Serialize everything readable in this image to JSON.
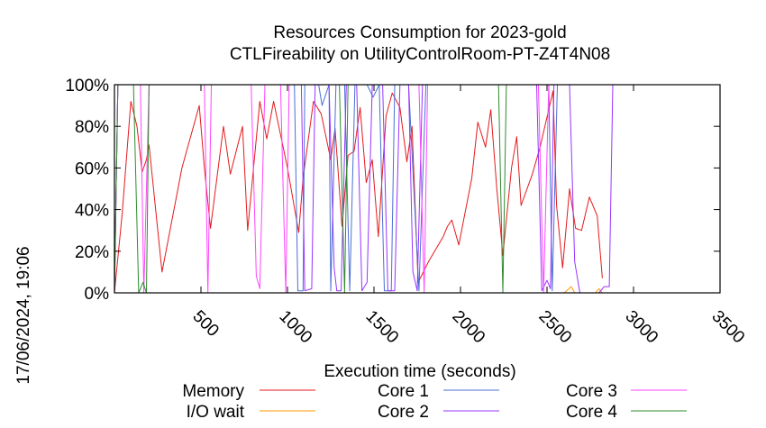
{
  "chart_data": {
    "type": "line",
    "title": "Resources Consumption for 2023-gold",
    "subtitle": "CTLFireability on UtilityControlRoom-PT-Z4T4N08",
    "xlabel": "Execution time (seconds)",
    "ylabel": "",
    "timestamp": "17/06/2024, 19:06",
    "xlim": [
      0,
      3500
    ],
    "ylim": [
      0,
      100
    ],
    "x_ticks": [
      500,
      1000,
      1500,
      2000,
      2500,
      3000,
      3500
    ],
    "y_ticks": [
      0,
      20,
      40,
      60,
      80,
      100
    ],
    "y_tick_suffix": "%",
    "grid": false,
    "legend_position": "bottom",
    "series": [
      {
        "name": "Memory",
        "color": "#e41a1c",
        "points": [
          [
            0,
            0
          ],
          [
            45,
            38
          ],
          [
            95,
            92
          ],
          [
            130,
            80
          ],
          [
            160,
            58
          ],
          [
            185,
            64
          ],
          [
            200,
            71
          ],
          [
            275,
            10
          ],
          [
            390,
            60
          ],
          [
            490,
            90
          ],
          [
            520,
            60
          ],
          [
            555,
            31
          ],
          [
            630,
            80
          ],
          [
            670,
            57
          ],
          [
            740,
            80
          ],
          [
            770,
            30
          ],
          [
            840,
            92
          ],
          [
            880,
            74
          ],
          [
            920,
            92
          ],
          [
            1000,
            60
          ],
          [
            1065,
            29
          ],
          [
            1090,
            55
          ],
          [
            1150,
            92
          ],
          [
            1195,
            86
          ],
          [
            1250,
            64
          ],
          [
            1275,
            79
          ],
          [
            1315,
            32
          ],
          [
            1350,
            66
          ],
          [
            1385,
            68
          ],
          [
            1420,
            89
          ],
          [
            1455,
            53
          ],
          [
            1490,
            64
          ],
          [
            1525,
            27
          ],
          [
            1570,
            85
          ],
          [
            1605,
            96
          ],
          [
            1650,
            89
          ],
          [
            1690,
            63
          ],
          [
            1720,
            80
          ],
          [
            1755,
            5
          ],
          [
            1815,
            15
          ],
          [
            1900,
            27
          ],
          [
            1925,
            32
          ],
          [
            1950,
            35
          ],
          [
            1990,
            23
          ],
          [
            2065,
            55
          ],
          [
            2100,
            82
          ],
          [
            2145,
            70
          ],
          [
            2175,
            88
          ],
          [
            2210,
            50
          ],
          [
            2245,
            18
          ],
          [
            2295,
            60
          ],
          [
            2325,
            75
          ],
          [
            2350,
            42
          ],
          [
            2415,
            57
          ],
          [
            2460,
            70
          ],
          [
            2535,
            97
          ],
          [
            2555,
            42
          ],
          [
            2590,
            12
          ],
          [
            2630,
            50
          ],
          [
            2665,
            31
          ],
          [
            2700,
            30
          ],
          [
            2745,
            46
          ],
          [
            2790,
            37
          ],
          [
            2820,
            7
          ]
        ]
      },
      {
        "name": "I/O wait",
        "color": "#ff9900",
        "points": [
          [
            0,
            0
          ],
          [
            2600,
            0
          ],
          [
            2640,
            3
          ],
          [
            2660,
            0
          ],
          [
            2780,
            0
          ],
          [
            2800,
            2
          ],
          [
            2820,
            0
          ],
          [
            3500,
            0
          ]
        ]
      },
      {
        "name": "Core 1",
        "color": "#4a6fd4",
        "points": [
          [
            0,
            0
          ],
          [
            20,
            100
          ],
          [
            1040,
            100
          ],
          [
            1060,
            1
          ],
          [
            1090,
            1
          ],
          [
            1100,
            100
          ],
          [
            1140,
            100
          ],
          [
            1180,
            100
          ],
          [
            1200,
            90
          ],
          [
            1240,
            100
          ],
          [
            1250,
            1
          ],
          [
            1280,
            100
          ],
          [
            1330,
            100
          ],
          [
            1360,
            1
          ],
          [
            1390,
            100
          ],
          [
            1460,
            100
          ],
          [
            1495,
            94
          ],
          [
            1530,
            100
          ],
          [
            1560,
            1
          ],
          [
            1600,
            1
          ],
          [
            1620,
            100
          ],
          [
            1700,
            100
          ],
          [
            1760,
            1
          ],
          [
            1800,
            100
          ],
          [
            2510,
            100
          ],
          [
            2530,
            1
          ],
          [
            2560,
            100
          ],
          [
            3500,
            100
          ]
        ]
      },
      {
        "name": "Core 2",
        "color": "#9933ff",
        "points": [
          [
            0,
            0
          ],
          [
            20,
            100
          ],
          [
            1080,
            100
          ],
          [
            1100,
            1
          ],
          [
            1140,
            2
          ],
          [
            1160,
            100
          ],
          [
            1240,
            100
          ],
          [
            1270,
            12
          ],
          [
            1285,
            1
          ],
          [
            1310,
            1
          ],
          [
            1340,
            100
          ],
          [
            1400,
            100
          ],
          [
            1430,
            1
          ],
          [
            1460,
            5
          ],
          [
            1490,
            100
          ],
          [
            1550,
            100
          ],
          [
            1580,
            1
          ],
          [
            1620,
            1
          ],
          [
            1650,
            100
          ],
          [
            1700,
            100
          ],
          [
            1725,
            10
          ],
          [
            1750,
            1
          ],
          [
            1780,
            100
          ],
          [
            2440,
            100
          ],
          [
            2470,
            1
          ],
          [
            2500,
            6
          ],
          [
            2520,
            2
          ],
          [
            2540,
            100
          ],
          [
            2630,
            100
          ],
          [
            2660,
            15
          ],
          [
            2690,
            0
          ],
          [
            2800,
            0
          ],
          [
            2830,
            3
          ],
          [
            2860,
            3
          ],
          [
            2880,
            100
          ],
          [
            3500,
            100
          ]
        ]
      },
      {
        "name": "Core 3",
        "color": "#ff44ff",
        "points": [
          [
            0,
            0
          ],
          [
            20,
            100
          ],
          [
            150,
            100
          ],
          [
            170,
            0
          ],
          [
            200,
            100
          ],
          [
            520,
            100
          ],
          [
            540,
            0
          ],
          [
            560,
            100
          ],
          [
            790,
            100
          ],
          [
            820,
            8
          ],
          [
            840,
            2
          ],
          [
            870,
            100
          ],
          [
            960,
            100
          ],
          [
            990,
            0
          ],
          [
            1010,
            100
          ],
          [
            1760,
            100
          ],
          [
            1790,
            0
          ],
          [
            1810,
            100
          ],
          [
            2450,
            100
          ],
          [
            2480,
            0
          ],
          [
            2510,
            100
          ],
          [
            3500,
            100
          ]
        ]
      },
      {
        "name": "Core 4",
        "color": "#2e8b2e",
        "points": [
          [
            0,
            0
          ],
          [
            20,
            100
          ],
          [
            110,
            100
          ],
          [
            140,
            0
          ],
          [
            165,
            5
          ],
          [
            185,
            0
          ],
          [
            200,
            100
          ],
          [
            1300,
            100
          ],
          [
            1330,
            0
          ],
          [
            1350,
            100
          ],
          [
            2220,
            100
          ],
          [
            2245,
            0
          ],
          [
            2265,
            100
          ],
          [
            3500,
            100
          ]
        ]
      }
    ]
  }
}
